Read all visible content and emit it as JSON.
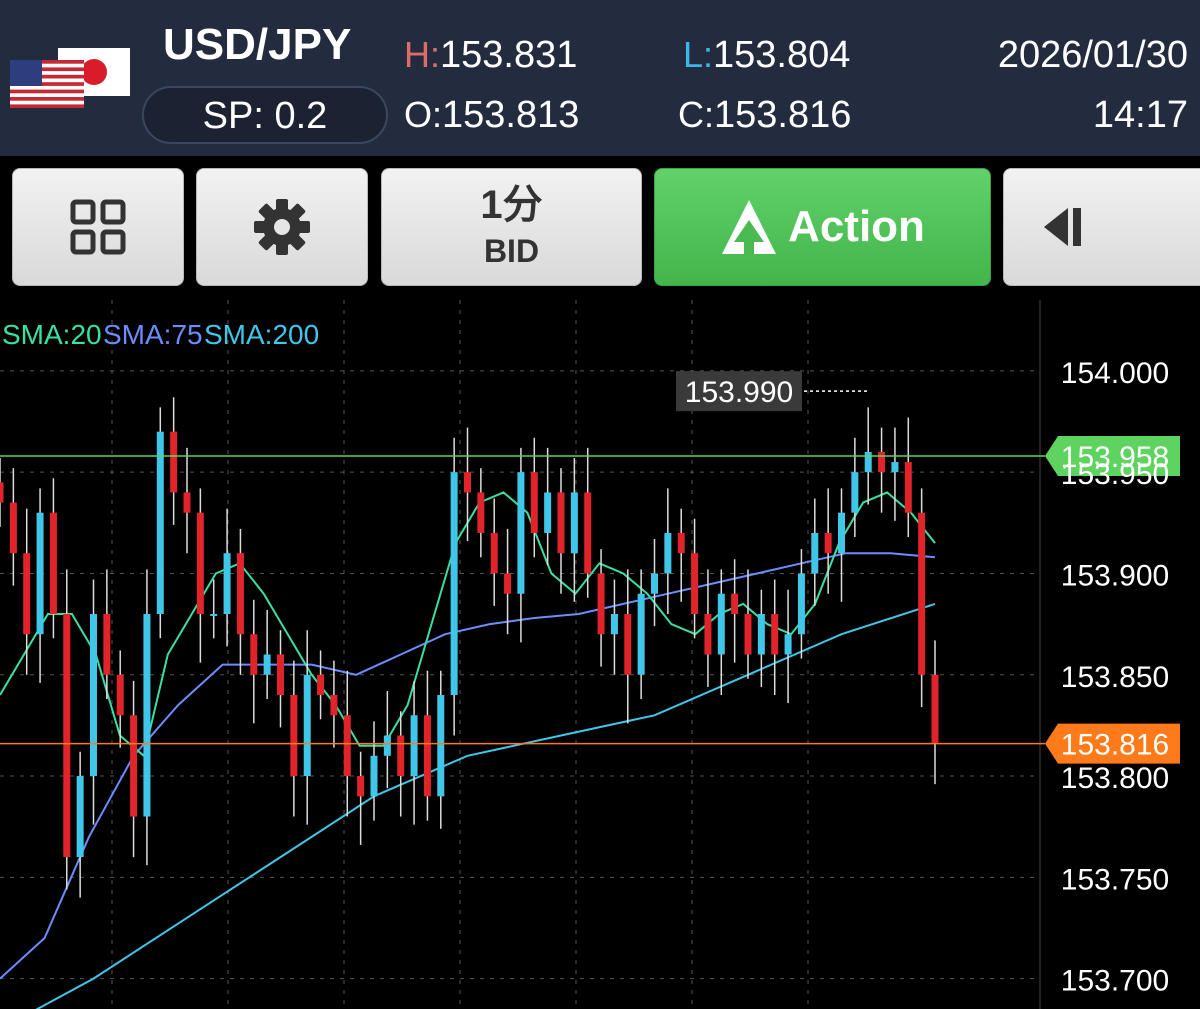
{
  "header": {
    "pair": "USD/JPY",
    "spread": "SP: 0.2",
    "high_key": "H:",
    "high": "153.831",
    "low_key": "L:",
    "low": "153.804",
    "open_key": "O:",
    "open": "153.813",
    "close_key": "C:",
    "close": "153.816",
    "date": "2026/01/30",
    "time": "14:17",
    "flags": [
      "us-flag-icon",
      "jp-flag-icon"
    ]
  },
  "toolbar": {
    "layout_icon": "grid-icon",
    "settings_icon": "gear-icon",
    "timeframe": "1分",
    "price_type": "BID",
    "action_label": "Action",
    "action_icon": "up-arrow-icon",
    "collapse_icon": "collapse-left-icon"
  },
  "colors": {
    "header_bg": "#232c3f",
    "sma20": "#39e0a0",
    "sma75": "#6d8cff",
    "sma200": "#3fc6e8",
    "bull": "#3fc6e8",
    "bear": "#e0242a",
    "green_line": "#5fd35f",
    "orange_line": "#ff7a1a"
  },
  "chart_data": {
    "type": "candlestick",
    "indicators": [
      "SMA:20",
      "SMA:75",
      "SMA:200"
    ],
    "y_ticks": [
      "154.000",
      "153.950",
      "153.900",
      "153.850",
      "153.800",
      "153.750",
      "153.700"
    ],
    "ylim": [
      153.685,
      154.035
    ],
    "grid": true,
    "high_marker": "153.990",
    "green_level": "153.958",
    "current_price": "153.816",
    "closes": [
      153.935,
      153.91,
      153.87,
      153.93,
      153.88,
      153.76,
      153.8,
      153.88,
      153.85,
      153.83,
      153.78,
      153.88,
      153.97,
      153.94,
      153.93,
      153.88,
      153.88,
      153.91,
      153.87,
      153.85,
      153.86,
      153.84,
      153.8,
      153.85,
      153.84,
      153.83,
      153.8,
      153.79,
      153.81,
      153.82,
      153.8,
      153.83,
      153.79,
      153.84,
      153.95,
      153.94,
      153.92,
      153.9,
      153.89,
      153.95,
      153.92,
      153.94,
      153.91,
      153.94,
      153.9,
      153.87,
      153.88,
      153.85,
      153.89,
      153.9,
      153.92,
      153.91,
      153.88,
      153.86,
      153.89,
      153.88,
      153.86,
      153.88,
      153.86,
      153.87,
      153.9,
      153.92,
      153.91,
      153.93,
      153.95,
      153.96,
      153.95,
      153.955,
      153.93,
      153.85,
      153.816
    ],
    "sma20": [
      153.84,
      153.86,
      153.88,
      153.88,
      153.86,
      153.82,
      153.81,
      153.86,
      153.88,
      153.9,
      153.905,
      153.89,
      153.87,
      153.85,
      153.835,
      153.815,
      153.815,
      153.835,
      153.875,
      153.915,
      153.935,
      153.94,
      153.93,
      153.9,
      153.89,
      153.905,
      153.9,
      153.89,
      153.875,
      153.87,
      153.88,
      153.885,
      153.875,
      153.87,
      153.885,
      153.915,
      153.935,
      153.94,
      153.93,
      153.915
    ],
    "sma75": [
      153.7,
      153.72,
      153.77,
      153.81,
      153.835,
      153.855,
      153.855,
      153.855,
      153.85,
      153.86,
      153.87,
      153.875,
      153.878,
      153.88,
      153.885,
      153.89,
      153.895,
      153.9,
      153.905,
      153.91,
      153.91,
      153.908
    ],
    "sma200": [
      153.675,
      153.7,
      153.73,
      153.76,
      153.79,
      153.81,
      153.82,
      153.83,
      153.85,
      153.87,
      153.885
    ]
  }
}
